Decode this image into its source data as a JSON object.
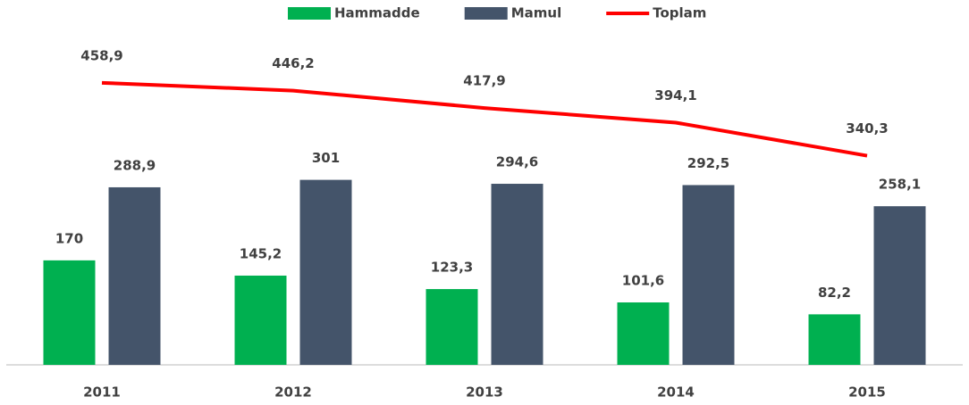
{
  "chart_data": {
    "type": "bar-line",
    "categories": [
      "2011",
      "2012",
      "2013",
      "2014",
      "2015"
    ],
    "series": [
      {
        "name": "Hammadde",
        "type": "bar",
        "color": "#00b050",
        "values": [
          170,
          145.2,
          123.3,
          101.6,
          82.2
        ],
        "value_labels": [
          "170",
          "145,2",
          "123,3",
          "101,6",
          "82,2"
        ]
      },
      {
        "name": "Mamul",
        "type": "bar",
        "color": "#44546a",
        "values": [
          288.9,
          301,
          294.6,
          292.5,
          258.1
        ],
        "value_labels": [
          "288,9",
          "301",
          "294,6",
          "292,5",
          "258,1"
        ]
      },
      {
        "name": "Toplam",
        "type": "line",
        "color": "#ff0000",
        "values": [
          458.9,
          446.2,
          417.9,
          394.1,
          340.3
        ],
        "value_labels": [
          "458,9",
          "446,2",
          "417,9",
          "394,1",
          "340,3"
        ]
      }
    ],
    "ylim": [
      0,
      590
    ],
    "legend": "top"
  }
}
